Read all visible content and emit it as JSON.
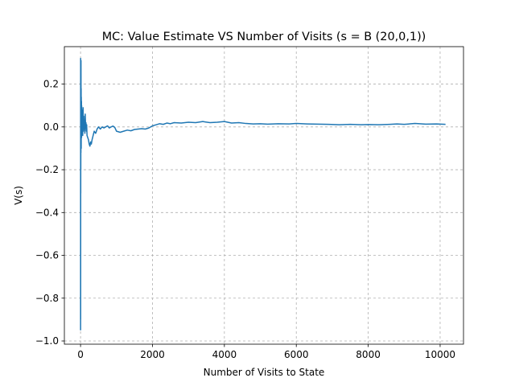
{
  "chart_data": {
    "type": "line",
    "title": "MC: Value Estimate VS Number of Visits (s = B (20,0,1))",
    "xlabel": "Number of Visits to State",
    "ylabel": "V(s)",
    "xlim": [
      -450,
      10650
    ],
    "ylim": [
      -1.015,
      0.375
    ],
    "xticks": [
      0,
      2000,
      4000,
      6000,
      8000,
      10000
    ],
    "xtick_labels": [
      "0",
      "2000",
      "4000",
      "6000",
      "8000",
      "10000"
    ],
    "yticks": [
      -1.0,
      -0.8,
      -0.6,
      -0.4,
      -0.2,
      0.0,
      0.2
    ],
    "ytick_labels": [
      "−1.0",
      "−0.8",
      "−0.6",
      "−0.4",
      "−0.2",
      "0.0",
      "0.2"
    ],
    "grid": true,
    "grid_style": "dashed",
    "series": [
      {
        "color": "#1f77b4",
        "x": [
          1,
          2,
          3,
          4,
          5,
          6,
          7,
          8,
          10,
          12,
          14,
          16,
          18,
          20,
          22,
          25,
          28,
          30,
          33,
          36,
          40,
          45,
          50,
          55,
          60,
          65,
          70,
          80,
          90,
          100,
          110,
          120,
          130,
          140,
          150,
          160,
          170,
          180,
          200,
          220,
          240,
          260,
          280,
          300,
          320,
          350,
          380,
          420,
          460,
          500,
          550,
          600,
          650,
          700,
          750,
          800,
          850,
          900,
          950,
          1000,
          1100,
          1200,
          1300,
          1400,
          1500,
          1600,
          1700,
          1800,
          1900,
          2000,
          2100,
          2200,
          2300,
          2400,
          2500,
          2600,
          2800,
          3000,
          3200,
          3400,
          3600,
          3800,
          4000,
          4200,
          4400,
          4600,
          4800,
          5000,
          5200,
          5500,
          5800,
          6000,
          6300,
          6600,
          6900,
          7200,
          7500,
          7800,
          8000,
          8300,
          8600,
          8800,
          9000,
          9300,
          9600,
          9900,
          10150
        ],
        "y": [
          -0.95,
          0.32,
          -0.9,
          0.3,
          -0.31,
          0.28,
          -0.2,
          0.25,
          -0.12,
          0.31,
          0.05,
          0.18,
          -0.1,
          0.14,
          0.0,
          0.12,
          -0.05,
          0.1,
          0.02,
          0.08,
          -0.03,
          0.06,
          0.01,
          0.04,
          -0.04,
          0.02,
          0.09,
          -0.02,
          0.05,
          -0.01,
          0.03,
          -0.03,
          0.06,
          0.0,
          0.02,
          -0.02,
          0.01,
          -0.04,
          -0.05,
          -0.06,
          -0.08,
          -0.09,
          -0.07,
          -0.08,
          -0.06,
          -0.04,
          -0.02,
          -0.03,
          -0.01,
          0.0,
          -0.01,
          0.0,
          -0.005,
          0.0,
          0.005,
          -0.005,
          0.0,
          0.004,
          -0.002,
          -0.02,
          -0.025,
          -0.02,
          -0.015,
          -0.018,
          -0.012,
          -0.01,
          -0.008,
          -0.01,
          -0.005,
          0.005,
          0.01,
          0.015,
          0.012,
          0.018,
          0.015,
          0.02,
          0.018,
          0.022,
          0.02,
          0.025,
          0.02,
          0.022,
          0.025,
          0.018,
          0.02,
          0.016,
          0.014,
          0.015,
          0.013,
          0.015,
          0.014,
          0.016,
          0.014,
          0.013,
          0.012,
          0.01,
          0.012,
          0.01,
          0.011,
          0.01,
          0.012,
          0.014,
          0.012,
          0.016,
          0.013,
          0.014,
          0.012
        ]
      }
    ]
  }
}
